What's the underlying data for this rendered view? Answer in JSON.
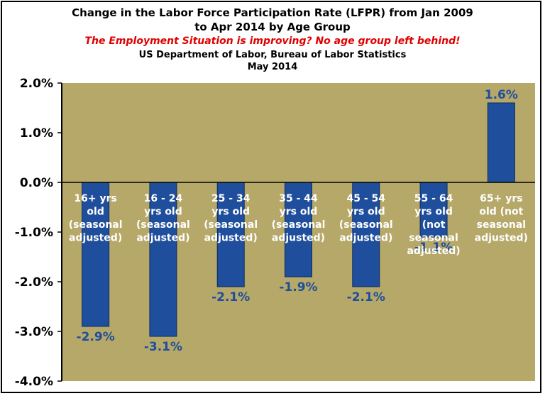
{
  "chart_data": {
    "type": "bar",
    "title": "Change in the Labor Force Participation Rate (LFPR) from Jan 2009 to Apr 2014 by Age Group",
    "title_lines": [
      "Change in the Labor Force Participation Rate (LFPR) from Jan 2009",
      "to Apr 2014 by Age Group"
    ],
    "subtitle": "The Employment Situation is improving?  No age group left behind!",
    "source_lines": [
      "US Department of Labor, Bureau of Labor Statistics",
      "May 2014"
    ],
    "categories": [
      "16+ yrs old (seasonal adjusted)",
      "16 - 24 yrs old (seasonal adjusted)",
      "25 - 34 yrs old (seasonal adjusted)",
      "35 - 44 yrs old (seasonal adjusted)",
      "45 - 54 yrs old (seasonal adjusted)",
      "55 - 64 yrs old (not seasonal adjusted)",
      "65+ yrs old (not seasonal adjusted)"
    ],
    "category_label_lines": [
      [
        "16+ yrs",
        "old",
        "(seasonal",
        "adjusted)"
      ],
      [
        "16 - 24",
        "yrs old",
        "(seasonal",
        "adjusted)"
      ],
      [
        "25 - 34",
        "yrs old",
        "(seasonal",
        "adjusted)"
      ],
      [
        "35 - 44",
        "yrs old",
        "(seasonal",
        "adjusted)"
      ],
      [
        "45 - 54",
        "yrs old",
        "(seasonal",
        "adjusted)"
      ],
      [
        "55 - 64",
        "yrs old",
        "(not",
        "seasonal",
        "adjusted)"
      ],
      [
        "65+ yrs",
        "old (not",
        "seasonal",
        "adjusted)"
      ]
    ],
    "values": [
      -2.9,
      -3.1,
      -2.1,
      -1.9,
      -2.1,
      -1.1,
      1.6
    ],
    "data_labels": [
      "-2.9%",
      "-3.1%",
      "-2.1%",
      "-1.9%",
      "-2.1%",
      "-1.1%",
      "1.6%"
    ],
    "ylim": [
      -4.0,
      2.0
    ],
    "yticks": [
      2.0,
      1.0,
      0.0,
      -1.0,
      -2.0,
      -3.0,
      -4.0
    ],
    "ytick_labels": [
      "2.0%",
      "1.0%",
      "0.0%",
      "-1.0%",
      "-2.0%",
      "-3.0%",
      "-4.0%"
    ],
    "xlabel": "",
    "ylabel": "",
    "grid": false,
    "legend": "none",
    "colors": {
      "plot_background": "#b5a868",
      "bar_fill": "#1f4e9c",
      "bar_stroke": "#0b2a66",
      "category_label": "#ffffff",
      "data_label": "#1f4e9c",
      "subtitle": "#e00000"
    }
  }
}
